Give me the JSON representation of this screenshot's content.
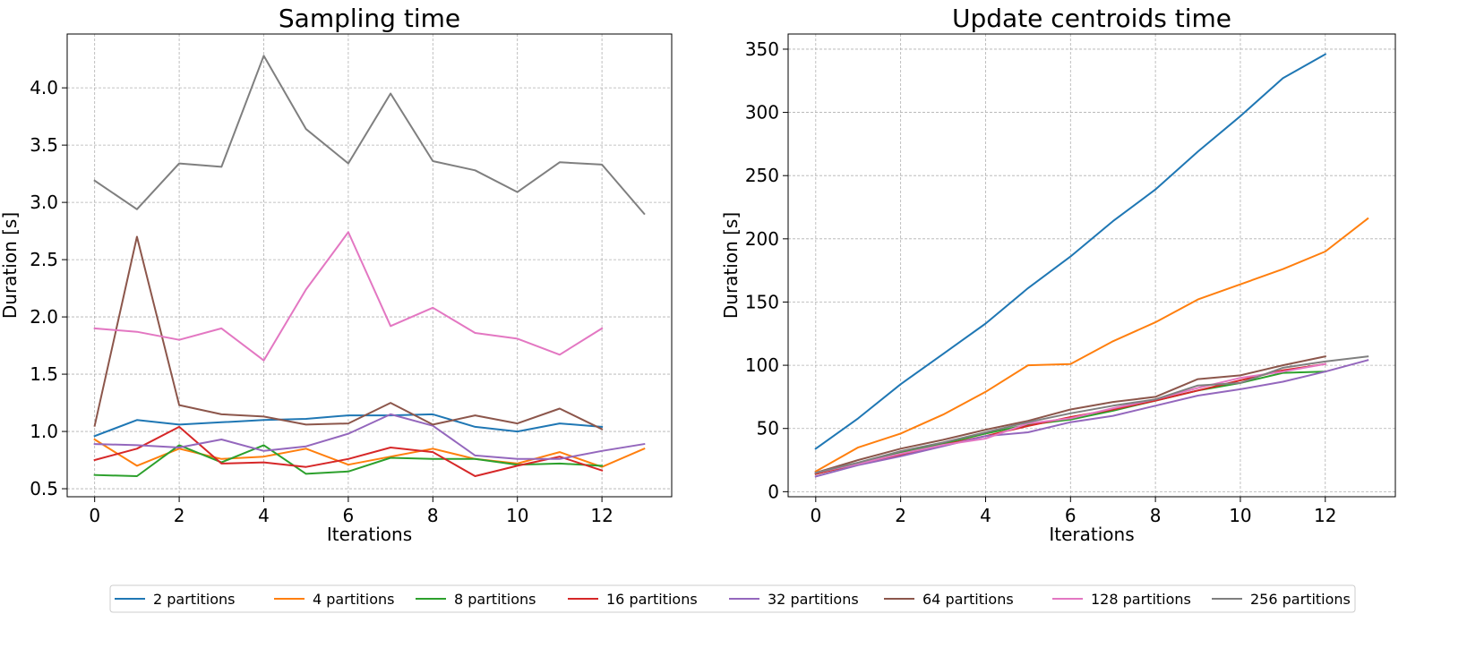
{
  "chart_data": [
    {
      "type": "line",
      "title": "Sampling time",
      "xlabel": "Iterations",
      "ylabel": "Duration [s]",
      "xlim": [
        -0.65,
        13.65
      ],
      "ylim": [
        0.43,
        4.47
      ],
      "xticks": [
        0,
        2,
        4,
        6,
        8,
        10,
        12
      ],
      "yticks": [
        0.5,
        1.0,
        1.5,
        2.0,
        2.5,
        3.0,
        3.5,
        4.0
      ],
      "ytick_labels": [
        "0.5",
        "1.0",
        "1.5",
        "2.0",
        "2.5",
        "3.0",
        "3.5",
        "4.0"
      ],
      "grid": true,
      "series": [
        {
          "name": "2 partitions",
          "color": "#1f77b4",
          "x": [
            0,
            1,
            2,
            3,
            4,
            5,
            6,
            7,
            8,
            9,
            10,
            11,
            12
          ],
          "values": [
            0.96,
            1.1,
            1.06,
            1.08,
            1.1,
            1.11,
            1.14,
            1.14,
            1.15,
            1.04,
            1.0,
            1.07,
            1.04
          ]
        },
        {
          "name": "4 partitions",
          "color": "#ff7f0e",
          "x": [
            0,
            1,
            2,
            3,
            4,
            5,
            6,
            7,
            8,
            9,
            10,
            11,
            12,
            13
          ],
          "values": [
            0.93,
            0.7,
            0.85,
            0.76,
            0.78,
            0.85,
            0.71,
            0.78,
            0.85,
            0.76,
            0.72,
            0.82,
            0.69,
            0.85
          ]
        },
        {
          "name": "8 partitions",
          "color": "#2ca02c",
          "x": [
            0,
            1,
            2,
            3,
            4,
            5,
            6,
            7,
            8,
            9,
            10,
            11,
            12
          ],
          "values": [
            0.62,
            0.61,
            0.88,
            0.73,
            0.88,
            0.63,
            0.65,
            0.77,
            0.76,
            0.76,
            0.71,
            0.72,
            0.7
          ]
        },
        {
          "name": "16 partitions",
          "color": "#d62728",
          "x": [
            0,
            1,
            2,
            3,
            4,
            5,
            6,
            7,
            8,
            9,
            10,
            11,
            12
          ],
          "values": [
            0.75,
            0.85,
            1.04,
            0.72,
            0.73,
            0.69,
            0.76,
            0.86,
            0.82,
            0.61,
            0.7,
            0.78,
            0.66
          ]
        },
        {
          "name": "32 partitions",
          "color": "#9467bd",
          "x": [
            0,
            1,
            2,
            3,
            4,
            5,
            6,
            7,
            8,
            9,
            10,
            11,
            12,
            13
          ],
          "values": [
            0.89,
            0.88,
            0.86,
            0.93,
            0.83,
            0.87,
            0.98,
            1.15,
            1.05,
            0.79,
            0.76,
            0.76,
            0.83,
            0.89
          ]
        },
        {
          "name": "64 partitions",
          "color": "#8c564b",
          "x": [
            0,
            1,
            2,
            3,
            4,
            5,
            6,
            7,
            8,
            9,
            10,
            11,
            12
          ],
          "values": [
            1.05,
            2.7,
            1.23,
            1.15,
            1.13,
            1.06,
            1.07,
            1.25,
            1.06,
            1.14,
            1.07,
            1.2,
            1.02
          ]
        },
        {
          "name": "128 partitions",
          "color": "#e377c2",
          "x": [
            0,
            1,
            2,
            3,
            4,
            5,
            6,
            7,
            8,
            9,
            10,
            11,
            12
          ],
          "values": [
            1.9,
            1.87,
            1.8,
            1.9,
            1.62,
            2.24,
            2.74,
            1.92,
            2.08,
            1.86,
            1.81,
            1.67,
            1.9
          ]
        },
        {
          "name": "256 partitions",
          "color": "#7f7f7f",
          "x": [
            0,
            1,
            2,
            3,
            4,
            5,
            6,
            7,
            8,
            9,
            10,
            11,
            12,
            13
          ],
          "values": [
            3.19,
            2.94,
            3.34,
            3.31,
            4.28,
            3.64,
            3.34,
            3.95,
            3.36,
            3.28,
            3.09,
            3.35,
            3.33,
            2.9
          ]
        }
      ]
    },
    {
      "type": "line",
      "title": "Update centroids time",
      "xlabel": "Iterations",
      "ylabel": "Duration [s]",
      "xlim": [
        -0.65,
        13.65
      ],
      "ylim": [
        -4,
        362
      ],
      "xticks": [
        0,
        2,
        4,
        6,
        8,
        10,
        12
      ],
      "yticks": [
        0,
        50,
        100,
        150,
        200,
        250,
        300,
        350
      ],
      "ytick_labels": [
        "0",
        "50",
        "100",
        "150",
        "200",
        "250",
        "300",
        "350"
      ],
      "grid": true,
      "series": [
        {
          "name": "2 partitions",
          "color": "#1f77b4",
          "x": [
            0,
            1,
            2,
            3,
            4,
            5,
            6,
            7,
            8,
            9,
            10,
            11,
            12
          ],
          "values": [
            34,
            58,
            85,
            109,
            133,
            161,
            186,
            214,
            239,
            269,
            297,
            327,
            346
          ]
        },
        {
          "name": "4 partitions",
          "color": "#ff7f0e",
          "x": [
            0,
            1,
            2,
            3,
            4,
            5,
            6,
            7,
            8,
            9,
            10,
            11,
            12,
            13
          ],
          "values": [
            16,
            35,
            46,
            61,
            79,
            100,
            101,
            119,
            134,
            152,
            164,
            176,
            190,
            216
          ]
        },
        {
          "name": "8 partitions",
          "color": "#2ca02c",
          "x": [
            0,
            1,
            2,
            3,
            4,
            5,
            6,
            7,
            8,
            9,
            10,
            11,
            12
          ],
          "values": [
            14,
            22,
            31,
            38,
            46,
            53,
            57,
            64,
            72,
            80,
            86,
            94,
            95
          ]
        },
        {
          "name": "16 partitions",
          "color": "#d62728",
          "x": [
            0,
            1,
            2,
            3,
            4,
            5,
            6,
            7,
            8,
            9,
            10,
            11,
            12
          ],
          "values": [
            14,
            22,
            29,
            37,
            44,
            52,
            59,
            65,
            72,
            80,
            88,
            96,
            101
          ]
        },
        {
          "name": "32 partitions",
          "color": "#9467bd",
          "x": [
            0,
            1,
            2,
            3,
            4,
            5,
            6,
            7,
            8,
            9,
            10,
            11,
            12,
            13
          ],
          "values": [
            12,
            21,
            28,
            36,
            44,
            47,
            55,
            60,
            68,
            76,
            81,
            87,
            95,
            104
          ]
        },
        {
          "name": "64 partitions",
          "color": "#8c564b",
          "x": [
            0,
            1,
            2,
            3,
            4,
            5,
            6,
            7,
            8,
            9,
            10,
            11,
            12
          ],
          "values": [
            15,
            25,
            34,
            41,
            49,
            56,
            65,
            71,
            75,
            89,
            92,
            100,
            107
          ]
        },
        {
          "name": "128 partitions",
          "color": "#e377c2",
          "x": [
            0,
            1,
            2,
            3,
            4,
            5,
            6,
            7,
            8,
            9,
            10,
            11,
            12
          ],
          "values": [
            15,
            22,
            30,
            37,
            42,
            54,
            58,
            66,
            73,
            82,
            90,
            95,
            101
          ]
        },
        {
          "name": "256 partitions",
          "color": "#7f7f7f",
          "x": [
            0,
            1,
            2,
            3,
            4,
            5,
            6,
            7,
            8,
            9,
            10,
            11,
            12,
            13
          ],
          "values": [
            15,
            23,
            32,
            39,
            47,
            55,
            62,
            68,
            73,
            84,
            86,
            98,
            103,
            107
          ]
        }
      ]
    }
  ],
  "legend": {
    "placement": "bottom-center",
    "items": [
      {
        "label": "2 partitions",
        "color": "#1f77b4"
      },
      {
        "label": "4 partitions",
        "color": "#ff7f0e"
      },
      {
        "label": "8 partitions",
        "color": "#2ca02c"
      },
      {
        "label": "16 partitions",
        "color": "#d62728"
      },
      {
        "label": "32 partitions",
        "color": "#9467bd"
      },
      {
        "label": "64 partitions",
        "color": "#8c564b"
      },
      {
        "label": "128 partitions",
        "color": "#e377c2"
      },
      {
        "label": "256 partitions",
        "color": "#7f7f7f"
      }
    ]
  }
}
